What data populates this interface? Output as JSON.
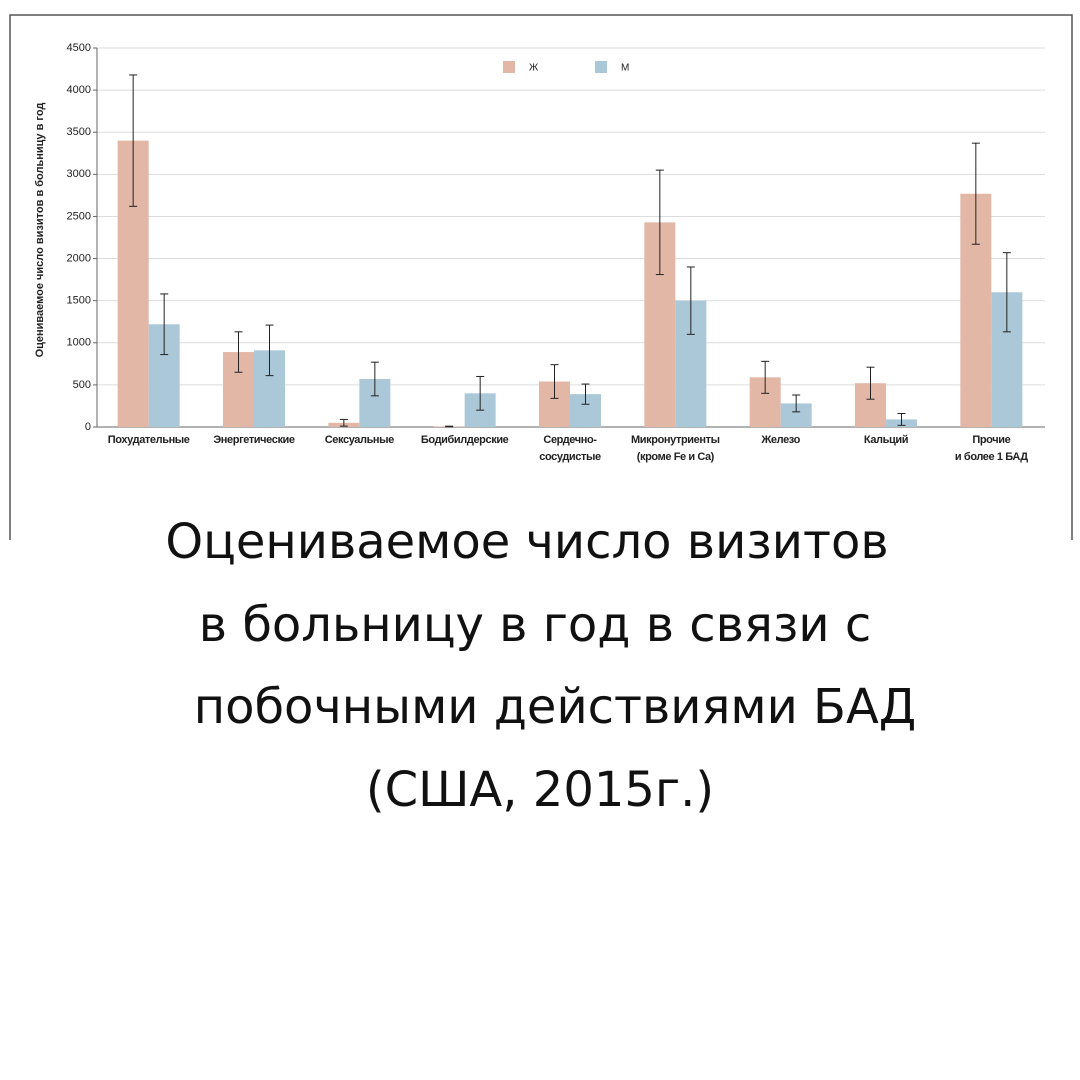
{
  "chart_data": {
    "type": "bar",
    "title": [
      "Оцениваемое число визитов",
      "в больницу в год в связи с",
      "побочными действиями БАД",
      "(США, 2015г.)"
    ],
    "y_label": "Оцениваемое число визитов в больницу в год",
    "categories": [
      "Похудательные",
      "Энергетические",
      "Сексуальные",
      "Бодибилдерские",
      "Сердечно-\nсосудистые",
      "Микронутриенты\n(кроме Fe и Ca)",
      "Железо",
      "Кальций",
      "Прочие\nи более 1 БАД"
    ],
    "series": [
      {
        "name": "Ж",
        "color": "#e3b7a6",
        "values": [
          3400,
          890,
          50,
          5,
          540,
          2430,
          590,
          520,
          2770
        ],
        "errors": [
          780,
          240,
          40,
          5,
          200,
          620,
          190,
          190,
          600
        ]
      },
      {
        "name": "М",
        "color": "#abc8d8",
        "values": [
          1220,
          910,
          570,
          400,
          390,
          1500,
          280,
          90,
          1600
        ],
        "errors": [
          360,
          300,
          200,
          200,
          120,
          400,
          100,
          70,
          470
        ]
      }
    ],
    "ylim": [
      0,
      4500
    ],
    "yticks": [
      0,
      500,
      1000,
      1500,
      2000,
      2500,
      3000,
      3500,
      4000,
      4500
    ],
    "grid": true
  }
}
